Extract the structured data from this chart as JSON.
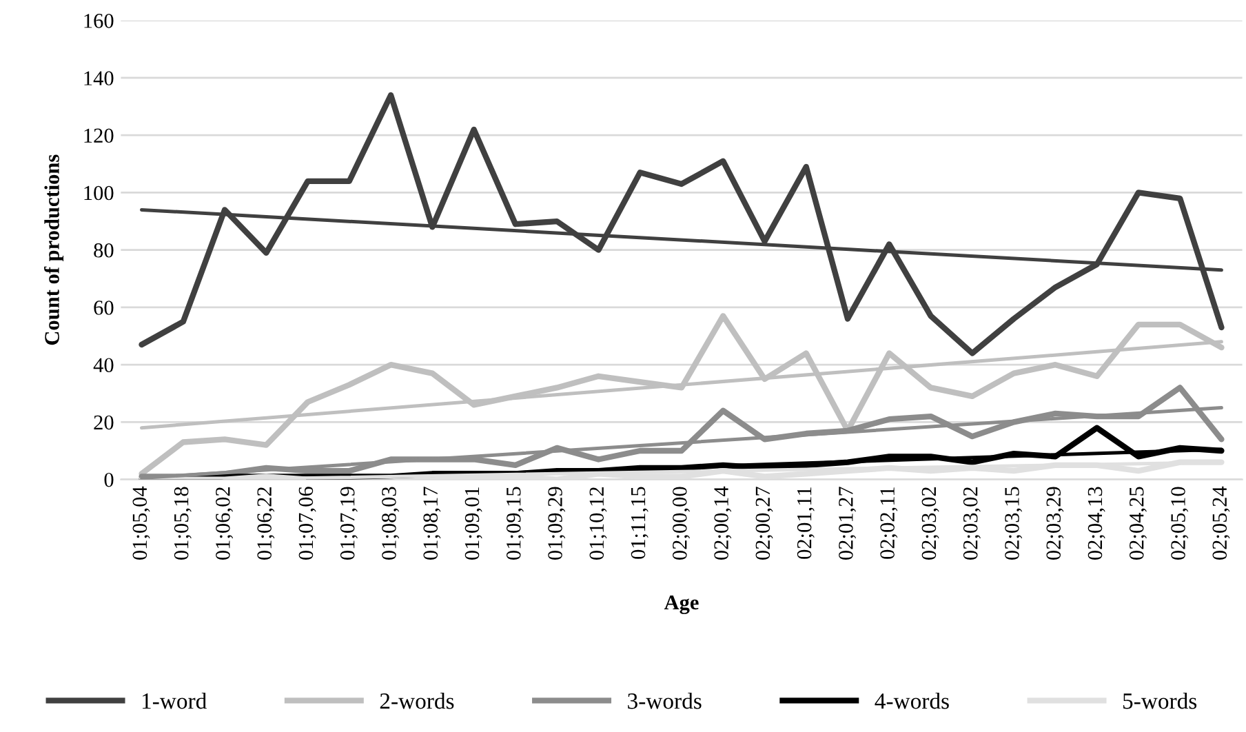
{
  "chart_data": {
    "type": "line",
    "xlabel": "Age",
    "ylabel": "Count of productions",
    "categories": [
      "01;05,04",
      "01;05,18",
      "01;06,02",
      "01;06,22",
      "01;07,06",
      "01;07,19",
      "01;08,03",
      "01;08,17",
      "01;09,01",
      "01;09,15",
      "01;09,29",
      "01;10,12",
      "01;11,15",
      "02;00,00",
      "02;00,14",
      "02;00,27",
      "02;01,11",
      "02;01,27",
      "02;02,11",
      "02;03,02",
      "02;03,02",
      "02;03,15",
      "02;03,29",
      "02;04,13",
      "02;04,25",
      "02;05,10",
      "02;05,24"
    ],
    "ylim": [
      0,
      160
    ],
    "yticks": [
      0,
      20,
      40,
      60,
      80,
      100,
      120,
      140,
      160
    ],
    "grid": "y",
    "legend": "bottom",
    "line_style": "solid",
    "marker": "none",
    "series": [
      {
        "name": "1-word",
        "color": "#404040",
        "values": [
          47,
          55,
          94,
          79,
          104,
          104,
          134,
          88,
          122,
          89,
          90,
          80,
          107,
          103,
          111,
          83,
          109,
          56,
          82,
          57,
          44,
          56,
          67,
          75,
          100,
          98,
          53
        ]
      },
      {
        "name": "2-words",
        "color": "#bfbfbf",
        "values": [
          2,
          13,
          14,
          12,
          27,
          33,
          40,
          37,
          26,
          29,
          32,
          36,
          34,
          32,
          57,
          35,
          44,
          17,
          44,
          32,
          29,
          37,
          40,
          36,
          54,
          54,
          46
        ]
      },
      {
        "name": "3-words",
        "color": "#8c8c8c",
        "values": [
          1,
          1,
          2,
          4,
          3,
          3,
          7,
          7,
          7,
          5,
          11,
          7,
          10,
          10,
          24,
          14,
          16,
          17,
          21,
          22,
          15,
          20,
          23,
          22,
          22,
          32,
          14
        ]
      },
      {
        "name": "4-words",
        "color": "#000000",
        "values": [
          0,
          0,
          1,
          1,
          1,
          1,
          1,
          2,
          2,
          2,
          3,
          3,
          4,
          4,
          5,
          4,
          5,
          6,
          8,
          8,
          6,
          9,
          8,
          18,
          8,
          11,
          10
        ]
      },
      {
        "name": "5-words",
        "color": "#e0e0e0",
        "values": [
          0,
          0,
          0,
          1,
          0,
          0,
          0,
          0,
          1,
          1,
          0,
          2,
          1,
          1,
          3,
          1,
          2,
          3,
          4,
          3,
          4,
          3,
          5,
          5,
          3,
          6,
          6
        ]
      },
      {
        "type": "line",
        "color": "#404040",
        "x": [
          "01;05,04",
          "02;05,24"
        ],
        "values": [
          94,
          73
        ]
      },
      {
        "type": "line",
        "color": "#bfbfbf",
        "x": [
          "01;05,04",
          "02;05,24"
        ],
        "values": [
          18,
          48
        ]
      },
      {
        "type": "line",
        "color": "#8c8c8c",
        "x": [
          "01;05,04",
          "02;05,24"
        ],
        "values": [
          0.5,
          25
        ]
      },
      {
        "type": "line",
        "color": "#000000",
        "x": [
          "01;07,06",
          "02;05,24"
        ],
        "values": [
          0,
          10.5
        ]
      },
      {
        "type": "line",
        "color": "#e0e0e0",
        "x": [
          "01;06,02",
          "02;05,24"
        ],
        "values": [
          0,
          6
        ]
      }
    ]
  }
}
